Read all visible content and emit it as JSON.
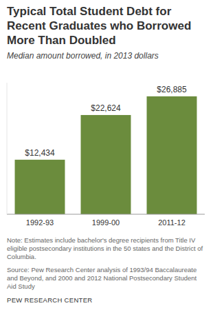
{
  "chart_data": {
    "type": "bar",
    "title": "Typical Total Student Debt for Recent Graduates who Borrowed More Than Doubled",
    "subtitle": "Median amount borrowed, in 2013 dollars",
    "categories": [
      "1992-93",
      "1999-00",
      "2011-12"
    ],
    "values": [
      12434,
      22624,
      26885
    ],
    "value_labels": [
      "$12,434",
      "$22,624",
      "$26,885"
    ],
    "color": "#6b8c3d",
    "ylim": [
      0,
      30000
    ],
    "data_labels": true,
    "tick_labels": "x",
    "note": "Note: Estimates include bachelor's degree recipients from Title IV eligible postsecondary institutions in the 50 states and the District of Columbia.",
    "source": "Source: Pew Research Center analysis of 1993/94 Baccalaureate and Beyond, and 2000 and 2012 National Postsecondary Student Aid Study",
    "credit": "PEW RESEARCH CENTER"
  }
}
